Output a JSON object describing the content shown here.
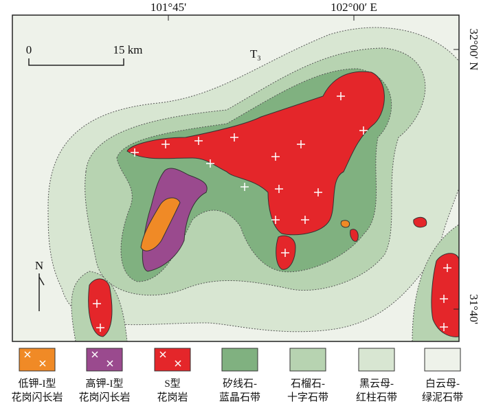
{
  "map": {
    "top_labels": [
      "101°45'",
      "102°00′ E"
    ],
    "right_labels": [
      "32°00′ N",
      "31°40'"
    ],
    "scale": {
      "start": "0",
      "end": "15 km"
    },
    "strata": {
      "main": "T",
      "sub": "3"
    },
    "north": "N",
    "legend": [
      {
        "line1": "低钾-I型",
        "line2": "花岗闪长岩"
      },
      {
        "line1": "高钾-I型",
        "line2": "花岗闪长岩"
      },
      {
        "line1": "S型",
        "line2": "花岗岩"
      },
      {
        "line1": "矽线石-",
        "line2": "蓝晶石带"
      },
      {
        "line1": "石榴石-",
        "line2": "十字石带"
      },
      {
        "line1": "黑云母-",
        "line2": "红柱石带"
      },
      {
        "line1": "白云母-",
        "line2": "绿泥石带"
      }
    ]
  }
}
